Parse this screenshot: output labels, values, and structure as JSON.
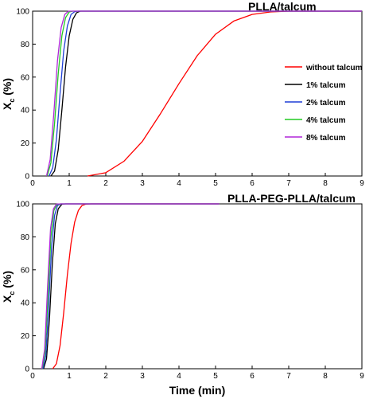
{
  "chart_data": [
    {
      "type": "line",
      "title": "PLLA/talcum",
      "xlabel": "",
      "ylabel": "X_c (%)",
      "ylabel_main": "X",
      "ylabel_sub": "c",
      "ylabel_rest": " (%)",
      "xlim": [
        0,
        9
      ],
      "ylim": [
        0,
        100
      ],
      "x_ticks": [
        0,
        1,
        2,
        3,
        4,
        5,
        6,
        7,
        8,
        9
      ],
      "y_ticks": [
        0,
        20,
        40,
        60,
        80,
        100
      ],
      "grid": false,
      "legend": "right",
      "series": [
        {
          "name": "without talcum",
          "color": "#ff0000",
          "x": [
            1.5,
            2.0,
            2.5,
            3.0,
            3.5,
            4.0,
            4.5,
            5.0,
            5.5,
            6.0,
            6.5,
            7.0,
            9.0
          ],
          "y": [
            0,
            2,
            9,
            21,
            38,
            56,
            73,
            86,
            94,
            98,
            99.5,
            100,
            100
          ]
        },
        {
          "name": "1% talcum",
          "color": "#000000",
          "x": [
            0.5,
            0.6,
            0.7,
            0.8,
            0.9,
            1.0,
            1.1,
            1.2,
            1.3,
            9.0
          ],
          "y": [
            0,
            3,
            16,
            40,
            66,
            85,
            95,
            99,
            100,
            100
          ]
        },
        {
          "name": "2% talcum",
          "color": "#1f3fd6",
          "x": [
            0.45,
            0.55,
            0.65,
            0.75,
            0.85,
            0.95,
            1.05,
            1.15,
            1.25,
            9.0
          ],
          "y": [
            0,
            5,
            22,
            50,
            76,
            91,
            98,
            99.7,
            100,
            100
          ]
        },
        {
          "name": "4% talcum",
          "color": "#22cc22",
          "x": [
            0.4,
            0.5,
            0.6,
            0.7,
            0.8,
            0.9,
            1.0,
            1.1,
            9.0
          ],
          "y": [
            0,
            8,
            32,
            62,
            85,
            96,
            99.5,
            100,
            100
          ]
        },
        {
          "name": "8% talcum",
          "color": "#b026d9",
          "x": [
            0.38,
            0.48,
            0.58,
            0.68,
            0.78,
            0.88,
            0.98,
            1.08,
            9.0
          ],
          "y": [
            0,
            10,
            38,
            70,
            90,
            98,
            100,
            100,
            100
          ]
        }
      ]
    },
    {
      "type": "line",
      "title": "PLLA-PEG-PLLA/talcum",
      "xlabel": "Time (min)",
      "ylabel": "X_c (%)",
      "ylabel_main": "X",
      "ylabel_sub": "c",
      "ylabel_rest": " (%)",
      "xlim": [
        0,
        9
      ],
      "ylim": [
        0,
        100
      ],
      "x_ticks": [
        0,
        1,
        2,
        3,
        4,
        5,
        6,
        7,
        8,
        9
      ],
      "y_ticks": [
        0,
        20,
        40,
        60,
        80,
        100
      ],
      "grid": false,
      "legend": "none",
      "series": [
        {
          "name": "without talcum",
          "color": "#ff0000",
          "x": [
            0.55,
            0.65,
            0.75,
            0.85,
            0.95,
            1.05,
            1.15,
            1.25,
            1.35,
            1.45,
            1.6,
            5.1
          ],
          "y": [
            0,
            3,
            14,
            34,
            57,
            76,
            89,
            96,
            99,
            99.8,
            100,
            100
          ]
        },
        {
          "name": "1% talcum",
          "color": "#000000",
          "x": [
            0.3,
            0.38,
            0.46,
            0.54,
            0.62,
            0.7,
            0.8,
            0.9,
            5.1
          ],
          "y": [
            0,
            6,
            30,
            64,
            88,
            97,
            99.8,
            100,
            100
          ]
        },
        {
          "name": "2% talcum",
          "color": "#1f3fd6",
          "x": [
            0.28,
            0.36,
            0.44,
            0.52,
            0.6,
            0.68,
            0.78,
            5.1
          ],
          "y": [
            0,
            8,
            38,
            74,
            93,
            99,
            100,
            100
          ]
        },
        {
          "name": "4% talcum",
          "color": "#22cc22",
          "x": [
            0.26,
            0.34,
            0.42,
            0.5,
            0.58,
            0.66,
            0.76,
            5.1
          ],
          "y": [
            0,
            10,
            44,
            80,
            96,
            99.5,
            100,
            100
          ]
        },
        {
          "name": "8% talcum",
          "color": "#b026d9",
          "x": [
            0.25,
            0.33,
            0.41,
            0.49,
            0.57,
            0.65,
            0.75,
            5.1
          ],
          "y": [
            0,
            12,
            50,
            85,
            97,
            99.8,
            100,
            100
          ]
        }
      ]
    }
  ]
}
